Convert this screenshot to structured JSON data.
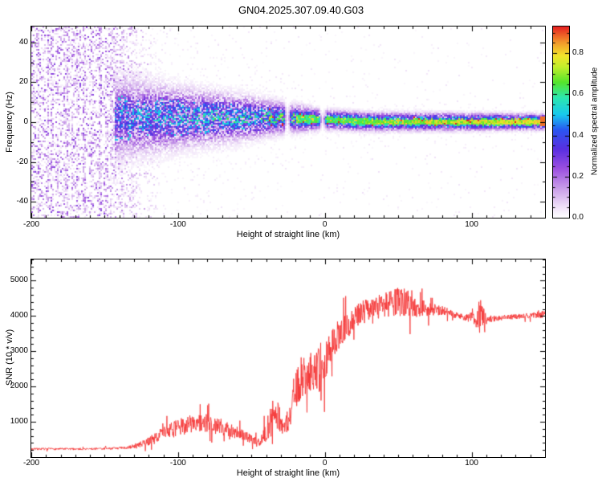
{
  "title": "GN04.2025.307.09.40.G03",
  "chart_data": [
    {
      "type": "heatmap",
      "title": "",
      "xlabel": "Height of straight line (km)",
      "ylabel": "Frequency (Hz)",
      "xlim": [
        -200,
        150
      ],
      "ylim": [
        -48,
        48
      ],
      "xticks": [
        -200,
        -100,
        0,
        100
      ],
      "x_minor_step": 10,
      "yticks": [
        -40,
        -20,
        0,
        20,
        40
      ],
      "y_minor_step": 10,
      "colorbar": {
        "label": "Normalized spectral amplitude",
        "ticks": [
          0.0,
          0.2,
          0.4,
          0.6,
          0.8
        ],
        "minor_step": 0.05,
        "vmin": 0,
        "vmax": 0.93
      },
      "structure": {
        "broadband_noise_xmax_km": -148,
        "noise_fade_xmax_km": -112,
        "band_center_hz": 2.5,
        "band_halfwidth_keypoints": [
          [
            -148,
            11
          ],
          [
            -100,
            8
          ],
          [
            -60,
            6
          ],
          [
            -30,
            4
          ],
          [
            0,
            2.5
          ],
          [
            150,
            2
          ]
        ],
        "band_intensity_keypoints": [
          [
            -148,
            0.4
          ],
          [
            -110,
            0.5
          ],
          [
            -70,
            0.55
          ],
          [
            -40,
            0.6
          ],
          [
            -20,
            0.68
          ],
          [
            0,
            0.72
          ],
          [
            50,
            0.75
          ],
          [
            150,
            0.85
          ]
        ],
        "gap_centers_km": [
          -26,
          -2
        ],
        "seed": 42
      },
      "colormap_stops": [
        [
          0.0,
          "#ffffff"
        ],
        [
          0.06,
          "#efe0f8"
        ],
        [
          0.16,
          "#c79ae8"
        ],
        [
          0.26,
          "#9b4fe0"
        ],
        [
          0.36,
          "#5a2fe0"
        ],
        [
          0.46,
          "#2b55f0"
        ],
        [
          0.54,
          "#18c8ee"
        ],
        [
          0.63,
          "#2ce8b0"
        ],
        [
          0.71,
          "#55e42b"
        ],
        [
          0.79,
          "#c2ee2b"
        ],
        [
          0.85,
          "#f2e42b"
        ],
        [
          0.92,
          "#f2962b"
        ],
        [
          1.0,
          "#e62222"
        ]
      ]
    },
    {
      "type": "line",
      "title": "",
      "xlabel": "Height of straight line (km)",
      "ylabel": "SNR (10 * v/v)",
      "line_color": "#f53030",
      "xlim": [
        -200,
        150
      ],
      "ylim": [
        0,
        5600
      ],
      "xticks": [
        -200,
        -100,
        0,
        100
      ],
      "x_minor_step": 10,
      "yticks": [
        1000,
        2000,
        3000,
        4000,
        5000
      ],
      "y_minor_step": 200,
      "seed": 7,
      "profile_keypoints": [
        [
          -200,
          230,
          70
        ],
        [
          -160,
          230,
          70
        ],
        [
          -135,
          260,
          90
        ],
        [
          -122,
          400,
          240
        ],
        [
          -112,
          650,
          420
        ],
        [
          -102,
          800,
          550
        ],
        [
          -92,
          950,
          650
        ],
        [
          -80,
          950,
          650
        ],
        [
          -70,
          850,
          550
        ],
        [
          -60,
          700,
          450
        ],
        [
          -50,
          500,
          300
        ],
        [
          -44,
          420,
          250
        ],
        [
          -38,
          900,
          900
        ],
        [
          -33,
          1300,
          1500
        ],
        [
          -29,
          800,
          600
        ],
        [
          -25,
          1000,
          800
        ],
        [
          -21,
          1800,
          1200
        ],
        [
          -16,
          2200,
          1300
        ],
        [
          -11,
          2400,
          1400
        ],
        [
          -6,
          2600,
          1500
        ],
        [
          -2,
          2200,
          1600
        ],
        [
          2,
          3000,
          1200
        ],
        [
          8,
          3400,
          1000
        ],
        [
          15,
          3700,
          900
        ],
        [
          22,
          4000,
          800
        ],
        [
          30,
          4200,
          800
        ],
        [
          40,
          4300,
          900
        ],
        [
          50,
          4400,
          950
        ],
        [
          58,
          4400,
          1000
        ],
        [
          65,
          4200,
          700
        ],
        [
          72,
          4200,
          450
        ],
        [
          80,
          4150,
          300
        ],
        [
          88,
          4050,
          250
        ],
        [
          96,
          3950,
          200
        ],
        [
          102,
          3950,
          500
        ],
        [
          106,
          4000,
          1500
        ],
        [
          110,
          3900,
          250
        ],
        [
          120,
          3950,
          180
        ],
        [
          135,
          4000,
          170
        ],
        [
          150,
          4050,
          250
        ]
      ]
    }
  ]
}
